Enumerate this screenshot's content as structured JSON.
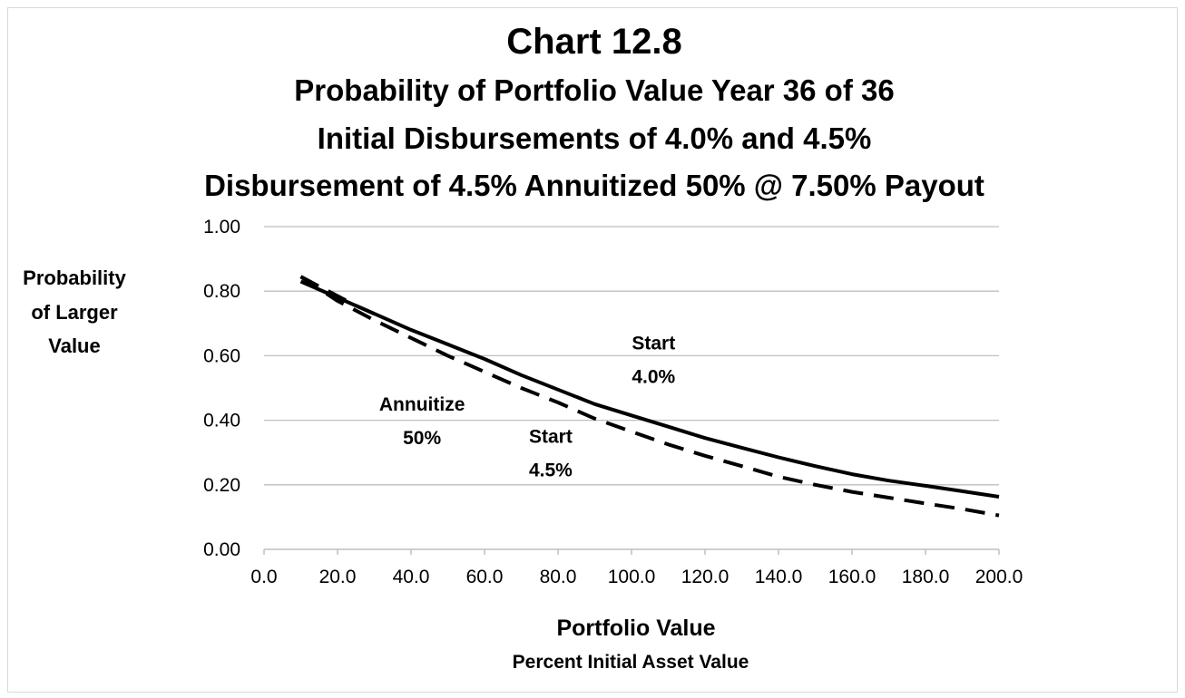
{
  "chart_data": {
    "type": "line",
    "title": "Chart 12.8",
    "subtitles": [
      "Probability of Portfolio Value Year 36 of 36",
      "Initial Disbursements of 4.0% and 4.5%",
      "Disbursement of 4.5% Annuitized 50% @ 7.50% Payout"
    ],
    "ylabel_lines": [
      "Probability",
      "of Larger",
      "Value"
    ],
    "xlabel": "Portfolio Value",
    "xlabel_sub": "Percent Initial Asset Value",
    "xlim": [
      0,
      200
    ],
    "ylim": [
      0,
      1
    ],
    "x_ticks": [
      "0.0",
      "20.0",
      "40.0",
      "60.0",
      "80.0",
      "100.0",
      "120.0",
      "140.0",
      "160.0",
      "180.0",
      "200.0"
    ],
    "y_ticks": [
      "0.00",
      "0.20",
      "0.40",
      "0.60",
      "0.80",
      "1.00"
    ],
    "grid": "horizontal",
    "series": [
      {
        "name": "Start 4.0%",
        "style": "solid",
        "color": "#000000",
        "x": [
          10,
          20,
          30,
          40,
          50,
          60,
          70,
          80,
          90,
          100,
          110,
          120,
          130,
          140,
          150,
          160,
          170,
          180,
          190,
          200
        ],
        "y": [
          0.83,
          0.78,
          0.73,
          0.68,
          0.635,
          0.59,
          0.54,
          0.495,
          0.45,
          0.415,
          0.38,
          0.345,
          0.315,
          0.285,
          0.258,
          0.233,
          0.213,
          0.197,
          0.18,
          0.163
        ]
      },
      {
        "name": "Start 4.5%",
        "style": "dashed",
        "color": "#000000",
        "x": [
          10,
          20,
          30,
          40,
          50,
          60,
          70,
          80,
          90,
          100,
          110,
          120,
          130,
          140,
          150,
          160,
          170,
          180,
          190,
          200
        ],
        "y": [
          0.845,
          0.77,
          0.71,
          0.655,
          0.6,
          0.55,
          0.5,
          0.455,
          0.405,
          0.365,
          0.325,
          0.29,
          0.258,
          0.225,
          0.2,
          0.178,
          0.16,
          0.142,
          0.125,
          0.105
        ]
      },
      {
        "name": "Annuitize 50%",
        "style": "dashed",
        "color": "#000000",
        "x": [
          10,
          15,
          20,
          25,
          30
        ],
        "y": [
          0.845,
          0.815,
          0.785,
          0.755,
          0.73
        ]
      }
    ],
    "annotations": [
      {
        "lines": [
          "Start",
          "4.0%"
        ],
        "x": 106,
        "y": 0.62
      },
      {
        "lines": [
          "Start",
          "4.5%"
        ],
        "x": 78,
        "y": 0.33
      },
      {
        "lines": [
          "Annuitize",
          "50%"
        ],
        "x": 43,
        "y": 0.43
      }
    ]
  }
}
